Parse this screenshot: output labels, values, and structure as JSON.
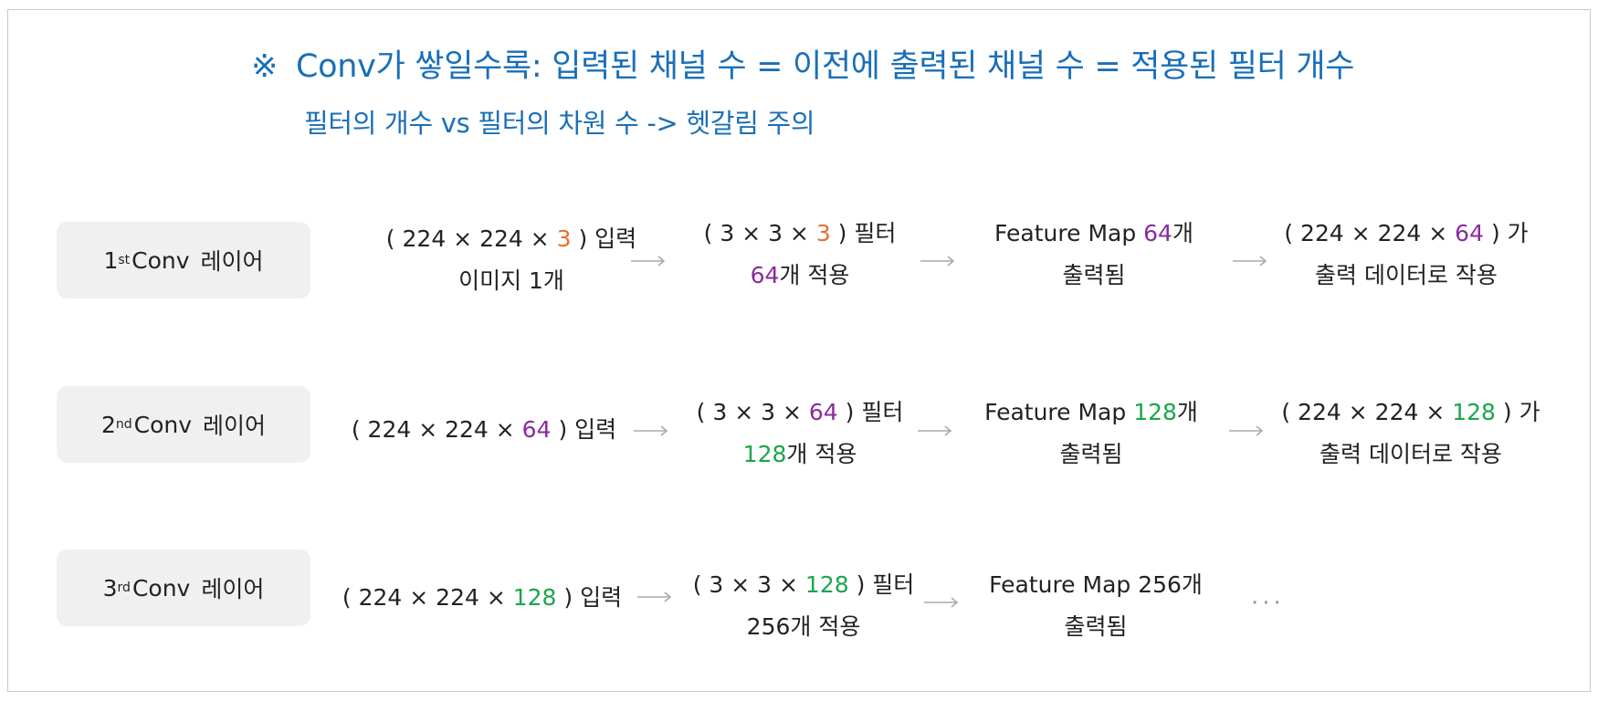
{
  "title": {
    "mark": "※",
    "text": "Conv가 쌓일수록:  입력된 채널 수 = 이전에 출력된 채널 수 = 적용된 필터 개수"
  },
  "subtitle": "필터의 개수 vs 필터의 차원 수  -> 헷갈림 주의",
  "colors": {
    "title": "#1a6fb8",
    "orange": "#e8702a",
    "purple": "#8b2a9e",
    "green": "#1aa64a",
    "box": "#f0f0f0",
    "arrow": "#aaaaaa"
  },
  "rows": [
    {
      "layer": {
        "num": "1",
        "suffix": "st",
        "label": "Conv",
        "word": "레이어"
      },
      "input": {
        "pre": "( 224 × 224 × ",
        "val": "3",
        "post": " ) 입력",
        "line2": "이미지 1개"
      },
      "filter": {
        "pre": "( 3 × 3 × ",
        "val": "3",
        "post": " ) 필터",
        "count": "64",
        "count_post": "개 적용"
      },
      "feature": {
        "pre": "Feature Map ",
        "val": "64",
        "post": "개",
        "line2": "출력됨"
      },
      "output": {
        "pre": "( 224 × 224 × ",
        "val": "64",
        "post": " ) 가",
        "line2": "출력 데이터로 작용"
      }
    },
    {
      "layer": {
        "num": "2",
        "suffix": "nd",
        "label": "Conv",
        "word": "레이어"
      },
      "input": {
        "pre": "( 224 × 224 × ",
        "val": "64",
        "post": " ) 입력"
      },
      "filter": {
        "pre": "( 3 × 3 × ",
        "val": "64",
        "post": " ) 필터",
        "count": "128",
        "count_post": "개 적용"
      },
      "feature": {
        "pre": "Feature Map ",
        "val": "128",
        "post": "개",
        "line2": "출력됨"
      },
      "output": {
        "pre": "( 224 × 224 × ",
        "val": "128",
        "post": " ) 가",
        "line2": "출력 데이터로 작용"
      }
    },
    {
      "layer": {
        "num": "3",
        "suffix": "rd",
        "label": "Conv",
        "word": "레이어"
      },
      "input": {
        "pre": "( 224 × 224 × ",
        "val": "128",
        "post": " ) 입력"
      },
      "filter": {
        "pre": "( 3 × 3 × ",
        "val": "128",
        "post": " ) 필터",
        "line2": "256개 적용"
      },
      "feature": {
        "text": "Feature Map 256개",
        "line2": "출력됨"
      }
    }
  ],
  "ellipsis": "···"
}
